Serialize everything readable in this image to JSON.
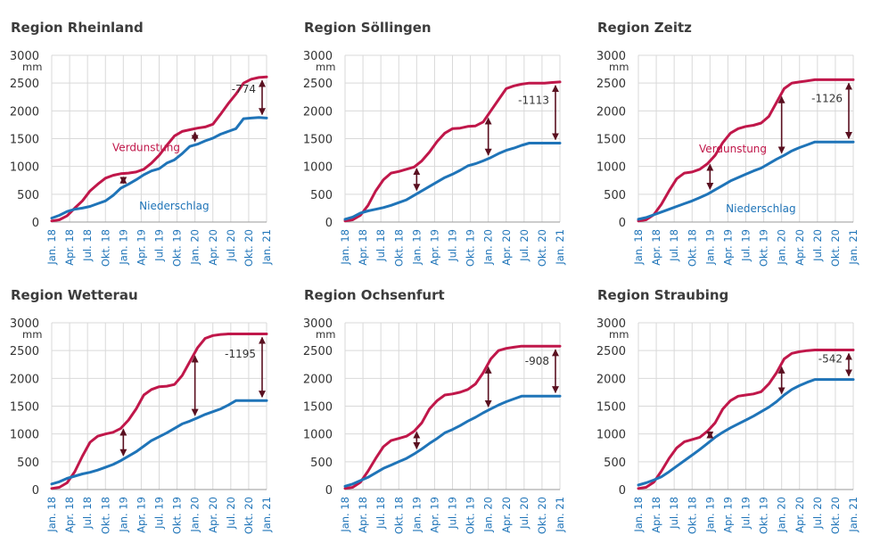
{
  "colors": {
    "verdunstung": "#c0174a",
    "niederschlag": "#1f74b8",
    "arrow": "#5a1020"
  },
  "chart_data": [
    {
      "type": "line",
      "title": "Region Rheinland",
      "ylabel": "mm",
      "ylim": [
        0,
        3000
      ],
      "yticks": [
        "0",
        "500",
        "1000",
        "1500",
        "2000",
        "2500",
        "3000"
      ],
      "xticks": [
        "Jan. 18",
        "Apr. 18",
        "Jul. 18",
        "Okt. 18",
        "Jan. 19",
        "Apr. 19",
        "Jul. 19",
        "Okt. 19",
        "Jan. 20",
        "Apr. 20",
        "Jul. 20",
        "Okt. 20",
        "Jan. 21"
      ],
      "series": [
        {
          "name": "Verdunstung",
          "color": "#c0174a",
          "values": [
            20,
            40,
            110,
            250,
            380,
            560,
            680,
            790,
            840,
            870,
            880,
            900,
            950,
            1060,
            1200,
            1380,
            1550,
            1630,
            1660,
            1690,
            1710,
            1760,
            1940,
            2130,
            2300,
            2500,
            2570,
            2600,
            2610
          ]
        },
        {
          "name": "Niederschlag",
          "color": "#1f74b8",
          "values": [
            70,
            120,
            190,
            230,
            250,
            280,
            330,
            380,
            480,
            610,
            680,
            760,
            850,
            920,
            960,
            1060,
            1120,
            1230,
            1360,
            1400,
            1460,
            1510,
            1580,
            1630,
            1680,
            1860,
            1870,
            1880,
            1870
          ]
        }
      ],
      "label_verdunstung": "Verdunstung",
      "label_niederschlag": "Niederschlag",
      "difference_label": "-774",
      "difference_arrows_at": [
        "Jan. 19",
        "Jan. 20",
        "Jan. 21"
      ]
    },
    {
      "type": "line",
      "title": "Region Söllingen",
      "ylabel": "mm",
      "ylim": [
        0,
        3000
      ],
      "yticks": [
        "0",
        "500",
        "1000",
        "1500",
        "2000",
        "2500",
        "3000"
      ],
      "xticks": [
        "Jan. 18",
        "Apr. 18",
        "Jul. 18",
        "Okt. 18",
        "Jan. 19",
        "Apr. 19",
        "Jul. 19",
        "Okt. 19",
        "Jan. 20",
        "Apr. 20",
        "Jul. 20",
        "Okt. 20",
        "Jan. 21"
      ],
      "series": [
        {
          "name": "Verdunstung",
          "color": "#c0174a",
          "values": [
            20,
            40,
            120,
            300,
            560,
            760,
            880,
            910,
            950,
            990,
            1100,
            1260,
            1450,
            1600,
            1680,
            1690,
            1720,
            1730,
            1800,
            2000,
            2200,
            2400,
            2450,
            2480,
            2500,
            2500,
            2500,
            2510,
            2520
          ]
        },
        {
          "name": "Niederschlag",
          "color": "#1f74b8",
          "values": [
            50,
            90,
            160,
            200,
            230,
            260,
            300,
            350,
            400,
            480,
            560,
            640,
            720,
            800,
            860,
            930,
            1010,
            1050,
            1100,
            1160,
            1230,
            1290,
            1330,
            1380,
            1420,
            1420,
            1420,
            1420,
            1420
          ]
        }
      ],
      "label_verdunstung": "",
      "label_niederschlag": "",
      "difference_label": "-1113",
      "difference_arrows_at": [
        "Jan. 19",
        "Jan. 20",
        "Jan. 21"
      ]
    },
    {
      "type": "line",
      "title": "Region Zeitz",
      "ylabel": "mm",
      "ylim": [
        0,
        3000
      ],
      "yticks": [
        "0",
        "500",
        "1000",
        "1500",
        "2000",
        "2500",
        "3000"
      ],
      "xticks": [
        "Jan. 18",
        "Apr. 18",
        "Jul. 18",
        "Okt. 18",
        "Jan. 19",
        "Apr. 19",
        "Jul. 19",
        "Okt. 19",
        "Jan. 20",
        "Apr. 20",
        "Jul. 20",
        "Okt. 20",
        "Jan. 21"
      ],
      "series": [
        {
          "name": "Verdunstung",
          "color": "#c0174a",
          "values": [
            20,
            40,
            130,
            320,
            560,
            780,
            880,
            900,
            950,
            1050,
            1200,
            1430,
            1600,
            1680,
            1720,
            1740,
            1780,
            1900,
            2150,
            2400,
            2500,
            2520,
            2540,
            2560,
            2560,
            2560,
            2560,
            2560,
            2560
          ]
        },
        {
          "name": "Niederschlag",
          "color": "#1f74b8",
          "values": [
            50,
            80,
            130,
            180,
            230,
            280,
            330,
            380,
            440,
            500,
            580,
            660,
            740,
            800,
            860,
            920,
            970,
            1050,
            1130,
            1200,
            1280,
            1340,
            1390,
            1440,
            1440,
            1440,
            1440,
            1440,
            1440
          ]
        }
      ],
      "label_verdunstung": "Verdunstung",
      "label_niederschlag": "Niederschlag",
      "difference_label": "-1126",
      "difference_arrows_at": [
        "Jan. 19",
        "Jan. 20",
        "Jan. 21"
      ]
    },
    {
      "type": "line",
      "title": "Region Wetterau",
      "ylabel": "mm",
      "ylim": [
        0,
        3000
      ],
      "yticks": [
        "0",
        "500",
        "1000",
        "1500",
        "2000",
        "2500",
        "3000"
      ],
      "xticks": [
        "Jan. 18",
        "Apr. 18",
        "Jul. 18",
        "Okt. 18",
        "Jan. 19",
        "Apr. 19",
        "Jul. 19",
        "Okt. 19",
        "Jan. 20",
        "Apr. 20",
        "Jul. 20",
        "Okt. 20",
        "Jan. 21"
      ],
      "series": [
        {
          "name": "Verdunstung",
          "color": "#c0174a",
          "values": [
            20,
            40,
            120,
            320,
            600,
            850,
            960,
            1000,
            1030,
            1100,
            1250,
            1450,
            1700,
            1800,
            1850,
            1860,
            1890,
            2050,
            2300,
            2550,
            2720,
            2770,
            2790,
            2800,
            2800,
            2800,
            2800,
            2800,
            2800
          ]
        },
        {
          "name": "Niederschlag",
          "color": "#1f74b8",
          "values": [
            100,
            140,
            200,
            240,
            280,
            310,
            350,
            400,
            450,
            520,
            600,
            680,
            780,
            880,
            950,
            1020,
            1100,
            1180,
            1230,
            1290,
            1350,
            1400,
            1450,
            1520,
            1600,
            1600,
            1600,
            1600,
            1600
          ]
        }
      ],
      "label_verdunstung": "",
      "label_niederschlag": "",
      "difference_label": "-1195",
      "difference_arrows_at": [
        "Jan. 19",
        "Jan. 20",
        "Jan. 21"
      ]
    },
    {
      "type": "line",
      "title": "Region Ochsenfurt",
      "ylabel": "mm",
      "ylim": [
        0,
        3000
      ],
      "yticks": [
        "0",
        "500",
        "1000",
        "1500",
        "2000",
        "2500",
        "3000"
      ],
      "xticks": [
        "Jan. 18",
        "Apr. 18",
        "Jul. 18",
        "Okt. 18",
        "Jan. 19",
        "Apr. 19",
        "Jul. 19",
        "Okt. 19",
        "Jan. 20",
        "Apr. 20",
        "Jul. 20",
        "Okt. 20",
        "Jan. 21"
      ],
      "series": [
        {
          "name": "Verdunstung",
          "color": "#c0174a",
          "values": [
            20,
            40,
            130,
            330,
            560,
            770,
            880,
            920,
            960,
            1050,
            1200,
            1450,
            1600,
            1700,
            1720,
            1750,
            1800,
            1900,
            2100,
            2350,
            2500,
            2540,
            2560,
            2580,
            2580,
            2580,
            2580,
            2580,
            2580
          ]
        },
        {
          "name": "Niederschlag",
          "color": "#1f74b8",
          "values": [
            60,
            100,
            160,
            220,
            300,
            380,
            440,
            500,
            560,
            640,
            730,
            830,
            920,
            1020,
            1080,
            1150,
            1230,
            1300,
            1380,
            1450,
            1520,
            1580,
            1630,
            1680,
            1680,
            1680,
            1680,
            1680,
            1680
          ]
        }
      ],
      "label_verdunstung": "",
      "label_niederschlag": "",
      "difference_label": "-908",
      "difference_arrows_at": [
        "Jan. 19",
        "Jan. 20",
        "Jan. 21"
      ]
    },
    {
      "type": "line",
      "title": "Region Straubing",
      "ylabel": "mm",
      "ylim": [
        0,
        3000
      ],
      "yticks": [
        "0",
        "500",
        "1000",
        "1500",
        "2000",
        "2500",
        "3000"
      ],
      "xticks": [
        "Jan. 18",
        "Apr. 18",
        "Jul. 18",
        "Okt. 18",
        "Jan. 19",
        "Apr. 19",
        "Jul. 19",
        "Okt. 19",
        "Jan. 20",
        "Apr. 20",
        "Jul. 20",
        "Okt. 20",
        "Jan. 21"
      ],
      "series": [
        {
          "name": "Verdunstung",
          "color": "#c0174a",
          "values": [
            20,
            40,
            130,
            330,
            560,
            750,
            860,
            900,
            940,
            1050,
            1200,
            1450,
            1600,
            1680,
            1700,
            1720,
            1760,
            1900,
            2100,
            2350,
            2450,
            2480,
            2500,
            2510,
            2510,
            2510,
            2510,
            2510,
            2510
          ]
        },
        {
          "name": "Niederschlag",
          "color": "#1f74b8",
          "values": [
            80,
            120,
            170,
            230,
            320,
            420,
            520,
            620,
            720,
            830,
            940,
            1030,
            1110,
            1180,
            1250,
            1320,
            1400,
            1480,
            1580,
            1700,
            1800,
            1870,
            1930,
            1980,
            1980,
            1980,
            1980,
            1980,
            1980
          ]
        }
      ],
      "label_verdunstung": "",
      "label_niederschlag": "",
      "difference_label": "-542",
      "difference_arrows_at": [
        "Jan. 19",
        "Jan. 20",
        "Jan. 21"
      ]
    }
  ]
}
